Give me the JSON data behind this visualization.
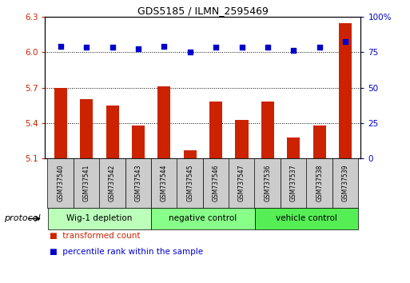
{
  "title": "GDS5185 / ILMN_2595469",
  "samples": [
    "GSM737540",
    "GSM737541",
    "GSM737542",
    "GSM737543",
    "GSM737544",
    "GSM737545",
    "GSM737546",
    "GSM737547",
    "GSM737536",
    "GSM737537",
    "GSM737538",
    "GSM737539"
  ],
  "transformed_count": [
    5.7,
    5.6,
    5.55,
    5.38,
    5.71,
    5.17,
    5.58,
    5.43,
    5.58,
    5.28,
    5.38,
    6.25
  ],
  "percentile_rank": [
    79.5,
    78.5,
    78.5,
    77.5,
    79.5,
    75.5,
    78.5,
    78.5,
    78.5,
    76.5,
    78.5,
    82.5
  ],
  "ylim_left": [
    5.1,
    6.3
  ],
  "ylim_right": [
    0,
    100
  ],
  "yticks_left": [
    5.1,
    5.4,
    5.7,
    6.0,
    6.3
  ],
  "yticks_right": [
    0,
    25,
    50,
    75,
    100
  ],
  "groups": [
    {
      "label": "Wig-1 depletion",
      "start": 0,
      "end": 4,
      "color": "#bbffbb"
    },
    {
      "label": "negative control",
      "start": 4,
      "end": 8,
      "color": "#88ff88"
    },
    {
      "label": "vehicle control",
      "start": 8,
      "end": 12,
      "color": "#55ee55"
    }
  ],
  "bar_color": "#cc2200",
  "dot_color": "#0000cc",
  "bar_bottom": 5.1,
  "sample_box_color": "#cccccc",
  "protocol_label": "protocol",
  "legend_items": [
    {
      "color": "#cc2200",
      "label": "transformed count"
    },
    {
      "color": "#0000cc",
      "label": "percentile rank within the sample"
    }
  ]
}
